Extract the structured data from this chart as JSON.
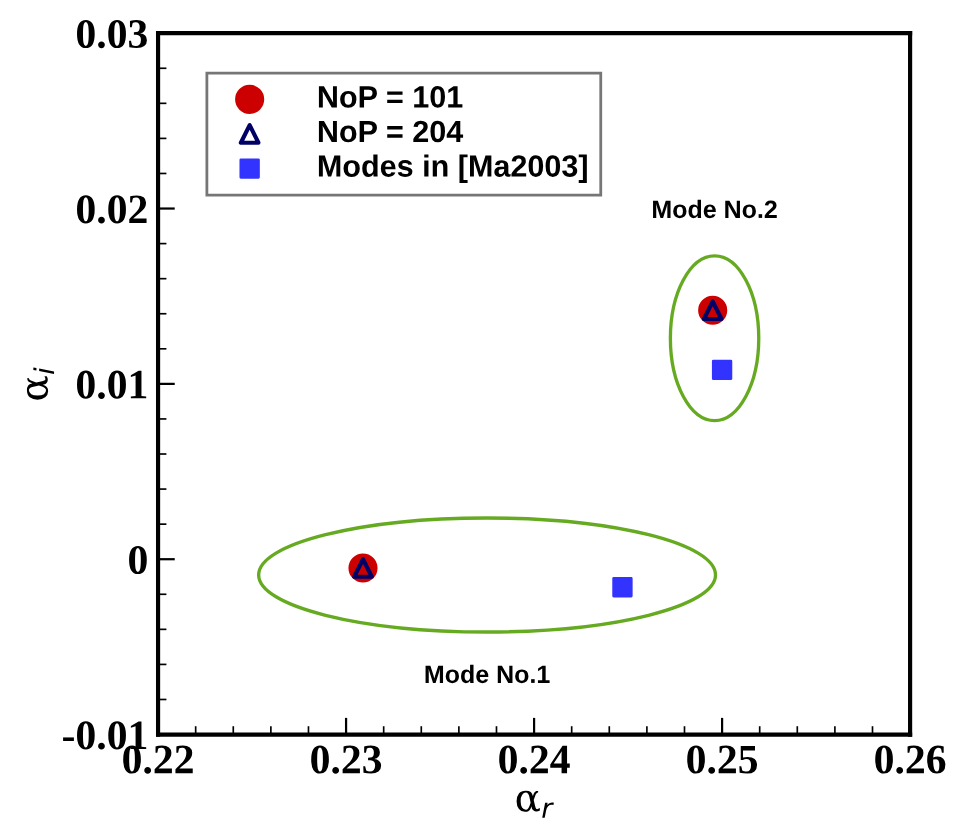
{
  "chart_data": {
    "type": "scatter",
    "xlabel": "α$_{r}$",
    "ylabel": "α$_{i}$",
    "xlim": [
      0.22,
      0.26
    ],
    "xticks": [
      0.22,
      0.23,
      0.24,
      0.25,
      0.26
    ],
    "ylim": [
      -0.01,
      0.03
    ],
    "yticks": [
      -0.01,
      0,
      0.01,
      0.02,
      0.03
    ],
    "grid": false,
    "legend": "top left",
    "series": [
      {
        "name": "NoP = 101",
        "color": "#cc0000",
        "marker": "circle",
        "x": [
          0.2309,
          0.2495
        ],
        "values": [
          -0.0005,
          0.0142
        ]
      },
      {
        "name": "NoP = 204",
        "color": "#000066",
        "marker": "triangle",
        "x": [
          0.2309,
          0.2495
        ],
        "values": [
          -0.0005,
          0.0142
        ]
      },
      {
        "name": "Modes in [Ma2003]",
        "color": "#3333ff",
        "marker": "square",
        "x": [
          0.2447,
          0.25
        ],
        "values": [
          -0.0016,
          0.0108
        ]
      }
    ],
    "annotations": [
      "Mode No.1",
      "Mode No.2"
    ]
  }
}
